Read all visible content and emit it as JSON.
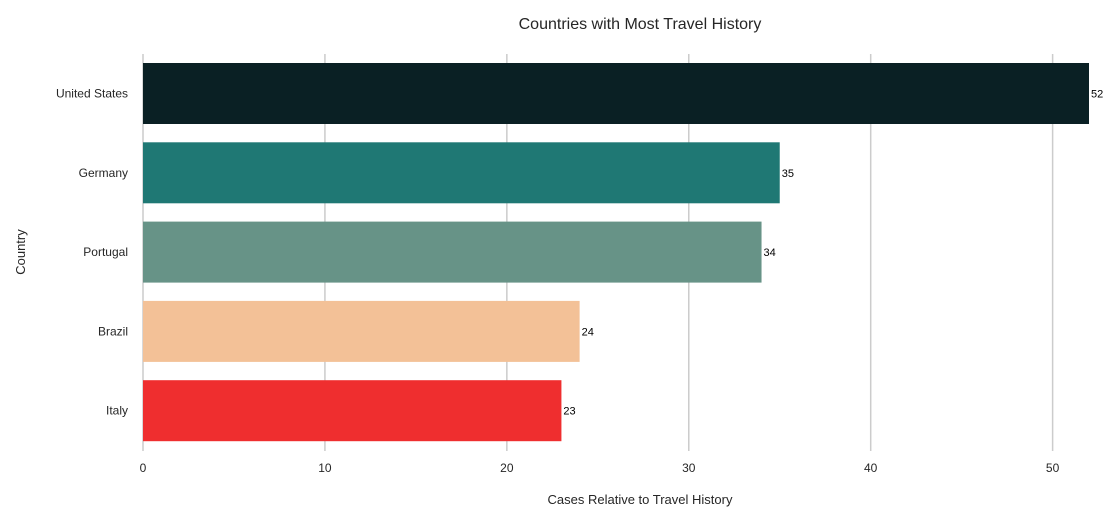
{
  "chart_data": {
    "type": "bar",
    "orientation": "horizontal",
    "title": "Countries with Most Travel History",
    "xlabel": "Cases Relative to Travel History",
    "ylabel": "Country",
    "categories": [
      "United States",
      "Germany",
      "Portugal",
      "Brazil",
      "Italy"
    ],
    "values": [
      52,
      35,
      34,
      24,
      23
    ],
    "value_labels": [
      "52",
      "35",
      "34",
      "24",
      "23"
    ],
    "colors": [
      "#0a2024",
      "#1f7874",
      "#679387",
      "#f3c197",
      "#ef2e2f"
    ],
    "xlim": [
      0,
      52
    ],
    "xticks": [
      0,
      10,
      20,
      30,
      40,
      50
    ],
    "xtick_labels": [
      "0",
      "10",
      "20",
      "30",
      "40",
      "50"
    ],
    "grid": "vertical"
  }
}
